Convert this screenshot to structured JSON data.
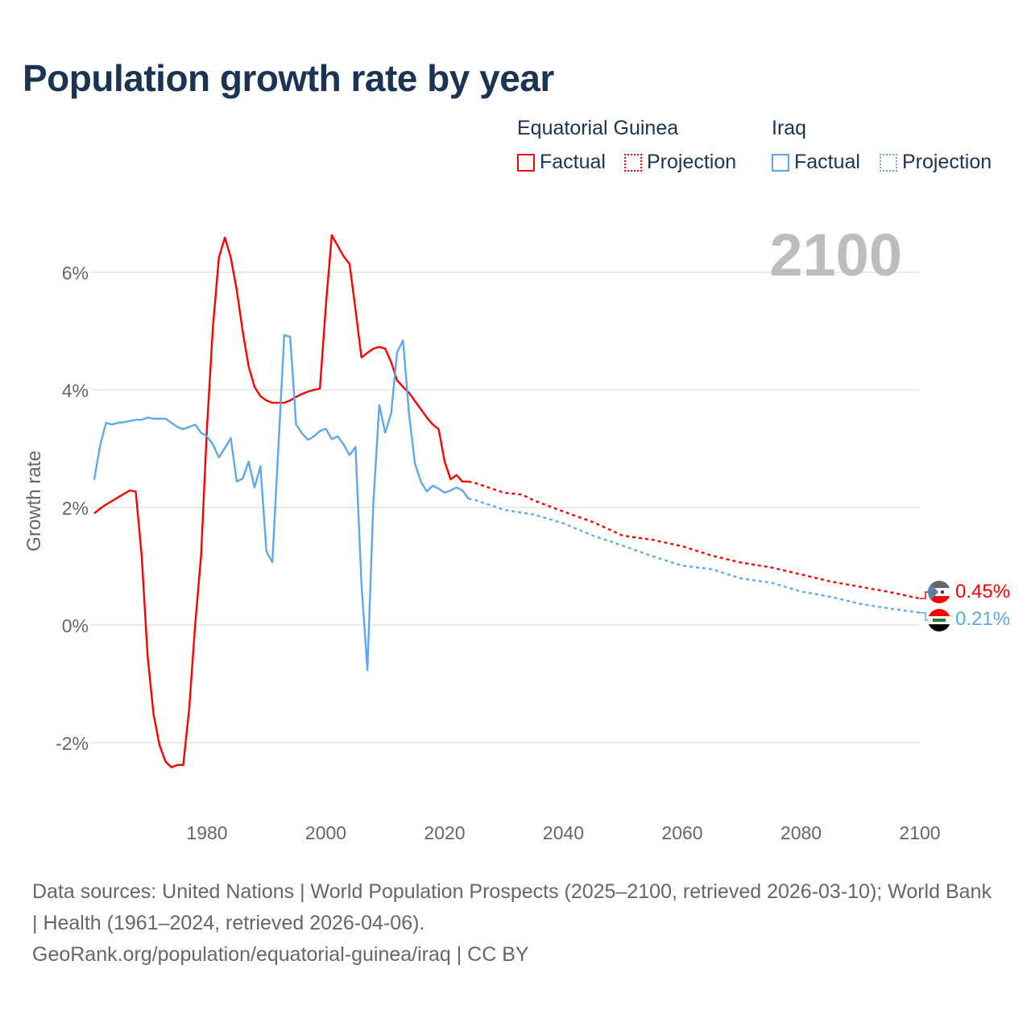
{
  "title": "Population growth rate by year",
  "legend": {
    "groups": [
      {
        "name": "Equatorial Guinea",
        "factual": "Factual",
        "projection": "Projection",
        "color": "#ff0000"
      },
      {
        "name": "Iraq",
        "factual": "Factual",
        "projection": "Projection",
        "color": "#5fa8ec"
      }
    ]
  },
  "year_label": "2100",
  "footer": {
    "line1": "Data sources: United Nations | World Population Prospects (2025–2100, retrieved 2026-03-10); World Bank | Health (1961–2024, retrieved 2026-04-06).",
    "line2": "GeoRank.org/population/equatorial-guinea/iraq | CC BY"
  },
  "chart_data": {
    "type": "line",
    "title": "Population growth rate by year",
    "xlabel": "",
    "ylabel": "Growth rate",
    "xlim": [
      1961,
      2100
    ],
    "ylim": [
      -3.1,
      7.0
    ],
    "x_ticks": [
      1980,
      2000,
      2020,
      2040,
      2060,
      2080,
      2100
    ],
    "x_tick_labels": [
      "1980",
      "2000",
      "2020",
      "2040",
      "2060",
      "2080",
      "2100"
    ],
    "y_ticks": [
      -2,
      0,
      2,
      4,
      6
    ],
    "y_tick_labels": [
      "-2%",
      "0%",
      "2%",
      "4%",
      "6%"
    ],
    "grid": true,
    "legend_position": "top-right",
    "series": [
      {
        "name": "Equatorial Guinea",
        "color": "#ff0000",
        "end_label": "0.45%",
        "factual_start_year": 1961,
        "factual": [
          1.9,
          1.98,
          2.05,
          2.11,
          2.17,
          2.23,
          2.29,
          2.27,
          1.18,
          -0.53,
          -1.52,
          -2.04,
          -2.32,
          -2.42,
          -2.38,
          -2.38,
          -1.42,
          0.0,
          1.18,
          3.37,
          5.08,
          6.25,
          6.59,
          6.25,
          5.7,
          5.0,
          4.4,
          4.05,
          3.89,
          3.82,
          3.78,
          3.78,
          3.78,
          3.82,
          3.88,
          3.93,
          3.97,
          4.0,
          4.02,
          5.42,
          6.63,
          6.45,
          6.27,
          6.14,
          5.36,
          4.55,
          4.63,
          4.7,
          4.73,
          4.7,
          4.47,
          4.16,
          4.05,
          3.95,
          3.81,
          3.67,
          3.53,
          3.41,
          3.33,
          2.78,
          2.48,
          2.55,
          2.44,
          2.44
        ],
        "projection": [
          [
            2024,
            2.44
          ],
          [
            2025,
            2.42
          ],
          [
            2030,
            2.25
          ],
          [
            2033,
            2.22
          ],
          [
            2035,
            2.12
          ],
          [
            2040,
            1.93
          ],
          [
            2045,
            1.75
          ],
          [
            2050,
            1.52
          ],
          [
            2055,
            1.45
          ],
          [
            2060,
            1.34
          ],
          [
            2065,
            1.18
          ],
          [
            2070,
            1.06
          ],
          [
            2075,
            0.98
          ],
          [
            2080,
            0.86
          ],
          [
            2085,
            0.74
          ],
          [
            2090,
            0.65
          ],
          [
            2095,
            0.56
          ],
          [
            2100,
            0.45
          ]
        ]
      },
      {
        "name": "Iraq",
        "color": "#5fa8ec",
        "end_label": "0.21%",
        "factual_start_year": 1961,
        "factual": [
          2.47,
          3.05,
          3.44,
          3.41,
          3.44,
          3.45,
          3.47,
          3.49,
          3.49,
          3.53,
          3.51,
          3.51,
          3.51,
          3.44,
          3.37,
          3.33,
          3.37,
          3.41,
          3.27,
          3.21,
          3.07,
          2.85,
          3.01,
          3.18,
          2.44,
          2.49,
          2.78,
          2.34,
          2.7,
          1.25,
          1.07,
          3.0,
          4.93,
          4.9,
          3.41,
          3.26,
          3.15,
          3.21,
          3.3,
          3.34,
          3.16,
          3.21,
          3.07,
          2.89,
          3.03,
          0.7,
          -0.77,
          2.07,
          3.74,
          3.27,
          3.6,
          4.64,
          4.84,
          3.6,
          2.75,
          2.44,
          2.27,
          2.37,
          2.32,
          2.25,
          2.29,
          2.34,
          2.29,
          2.15
        ],
        "projection": [
          [
            2024,
            2.15
          ],
          [
            2025,
            2.13
          ],
          [
            2030,
            1.96
          ],
          [
            2035,
            1.88
          ],
          [
            2040,
            1.73
          ],
          [
            2045,
            1.52
          ],
          [
            2050,
            1.35
          ],
          [
            2055,
            1.17
          ],
          [
            2060,
            1.01
          ],
          [
            2065,
            0.95
          ],
          [
            2070,
            0.79
          ],
          [
            2075,
            0.72
          ],
          [
            2080,
            0.57
          ],
          [
            2085,
            0.48
          ],
          [
            2090,
            0.36
          ],
          [
            2095,
            0.28
          ],
          [
            2100,
            0.21
          ]
        ]
      }
    ]
  }
}
